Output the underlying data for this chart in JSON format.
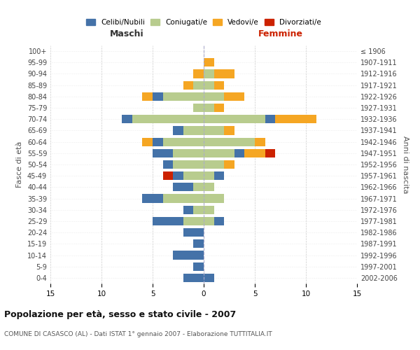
{
  "age_groups": [
    "0-4",
    "5-9",
    "10-14",
    "15-19",
    "20-24",
    "25-29",
    "30-34",
    "35-39",
    "40-44",
    "45-49",
    "50-54",
    "55-59",
    "60-64",
    "65-69",
    "70-74",
    "75-79",
    "80-84",
    "85-89",
    "90-94",
    "95-99",
    "100+"
  ],
  "birth_years": [
    "2002-2006",
    "1997-2001",
    "1992-1996",
    "1987-1991",
    "1982-1986",
    "1977-1981",
    "1972-1976",
    "1967-1971",
    "1962-1966",
    "1957-1961",
    "1952-1956",
    "1947-1951",
    "1942-1946",
    "1937-1941",
    "1932-1936",
    "1927-1931",
    "1922-1926",
    "1917-1921",
    "1912-1916",
    "1907-1911",
    "≤ 1906"
  ],
  "maschi": {
    "celibi": [
      2,
      1,
      3,
      1,
      2,
      3,
      1,
      2,
      2,
      1,
      1,
      2,
      1,
      1,
      1,
      0,
      1,
      0,
      0,
      0,
      0
    ],
    "coniugati": [
      0,
      0,
      0,
      0,
      0,
      2,
      1,
      4,
      1,
      2,
      3,
      3,
      4,
      2,
      7,
      1,
      4,
      1,
      0,
      0,
      0
    ],
    "vedovi": [
      0,
      0,
      0,
      0,
      0,
      0,
      0,
      0,
      0,
      0,
      0,
      0,
      1,
      0,
      0,
      0,
      1,
      1,
      1,
      0,
      0
    ],
    "divorziati": [
      0,
      0,
      0,
      0,
      0,
      0,
      0,
      0,
      0,
      1,
      0,
      0,
      0,
      0,
      0,
      0,
      0,
      0,
      0,
      0,
      0
    ]
  },
  "femmine": {
    "nubili": [
      1,
      0,
      0,
      0,
      0,
      1,
      0,
      0,
      0,
      1,
      0,
      1,
      0,
      0,
      1,
      0,
      0,
      0,
      0,
      0,
      0
    ],
    "coniugate": [
      0,
      0,
      0,
      0,
      0,
      1,
      1,
      2,
      1,
      1,
      2,
      3,
      5,
      2,
      6,
      1,
      2,
      1,
      1,
      0,
      0
    ],
    "vedove": [
      0,
      0,
      0,
      0,
      0,
      0,
      0,
      0,
      0,
      0,
      1,
      2,
      1,
      1,
      4,
      1,
      2,
      1,
      2,
      1,
      0
    ],
    "divorziate": [
      0,
      0,
      0,
      0,
      0,
      0,
      0,
      0,
      0,
      0,
      0,
      1,
      0,
      0,
      0,
      0,
      0,
      0,
      0,
      0,
      0
    ]
  },
  "colors": {
    "celibi": "#4472a8",
    "coniugati": "#b8cc8e",
    "vedovi": "#f5a623",
    "divorziati": "#cc2200"
  },
  "xlim": 15,
  "title": "Popolazione per età, sesso e stato civile - 2007",
  "subtitle": "COMUNE DI CASASCO (AL) - Dati ISTAT 1° gennaio 2007 - Elaborazione TUTTITALIA.IT",
  "ylabel_left": "Fasce di età",
  "ylabel_right": "Anni di nascita"
}
